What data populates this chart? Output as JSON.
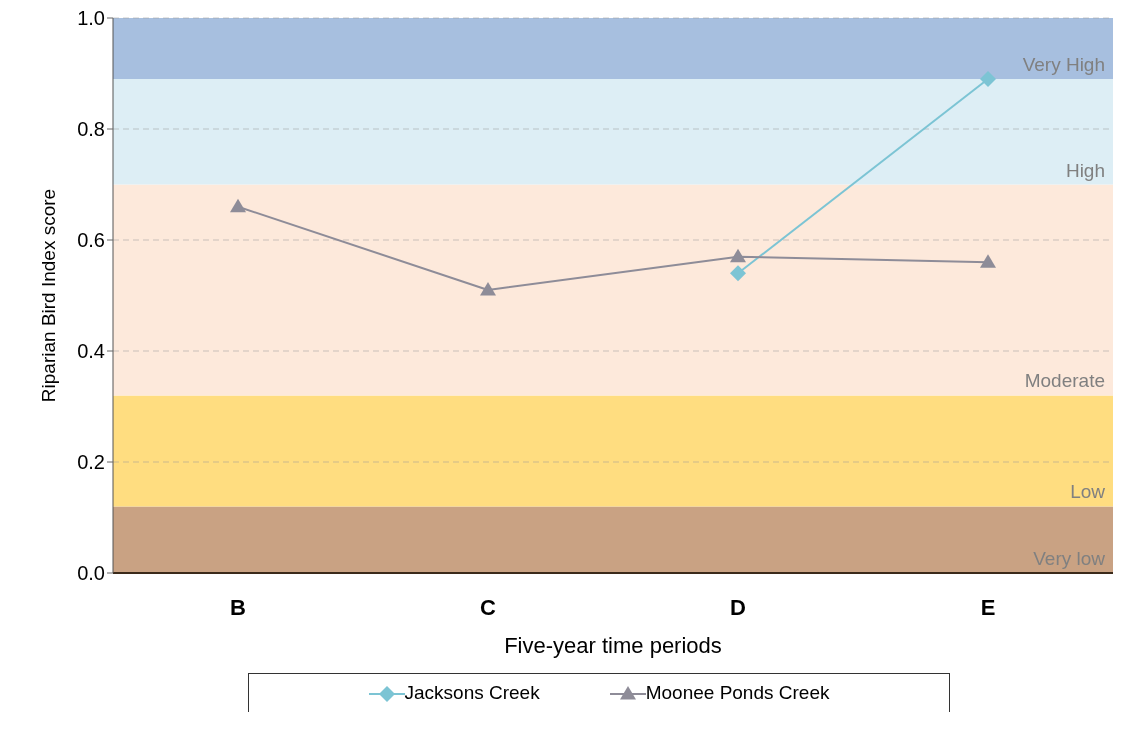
{
  "chart_data": {
    "type": "line",
    "xlabel": "Five-year time periods",
    "ylabel": "Riparian Bird Index score",
    "categories": [
      "B",
      "C",
      "D",
      "E"
    ],
    "series": [
      {
        "name": "Jacksons Creek",
        "color": "#7cc4d4",
        "marker": "diamond",
        "values": [
          null,
          null,
          0.54,
          0.89
        ]
      },
      {
        "name": "Moonee Ponds Creek",
        "color": "#8e8c98",
        "marker": "triangle",
        "values": [
          0.66,
          0.51,
          0.57,
          0.56
        ]
      }
    ],
    "ylim": [
      0,
      1
    ],
    "yticks": [
      {
        "value": 0,
        "label": "0.0"
      },
      0.2,
      0.4,
      0.6,
      0.8,
      {
        "value": 1,
        "label": "1.0"
      }
    ],
    "bands": [
      {
        "axis": "y",
        "from": 0,
        "to": 0.12,
        "label": "Very low",
        "color": "#c9a283"
      },
      {
        "axis": "y",
        "from": 0.12,
        "to": 0.32,
        "label": "Low",
        "color": "#ffdd80"
      },
      {
        "axis": "y",
        "from": 0.32,
        "to": 0.7,
        "label": "Moderate",
        "color": "#fde9db"
      },
      {
        "axis": "y",
        "from": 0.7,
        "to": 0.89,
        "label": "High",
        "color": "#ddeef5"
      },
      {
        "axis": "y",
        "from": 0.89,
        "to": 1,
        "label": "Very High",
        "color": "#a7bfdf"
      }
    ],
    "grid": "y",
    "legend": "bottom",
    "line_style": "solid"
  }
}
